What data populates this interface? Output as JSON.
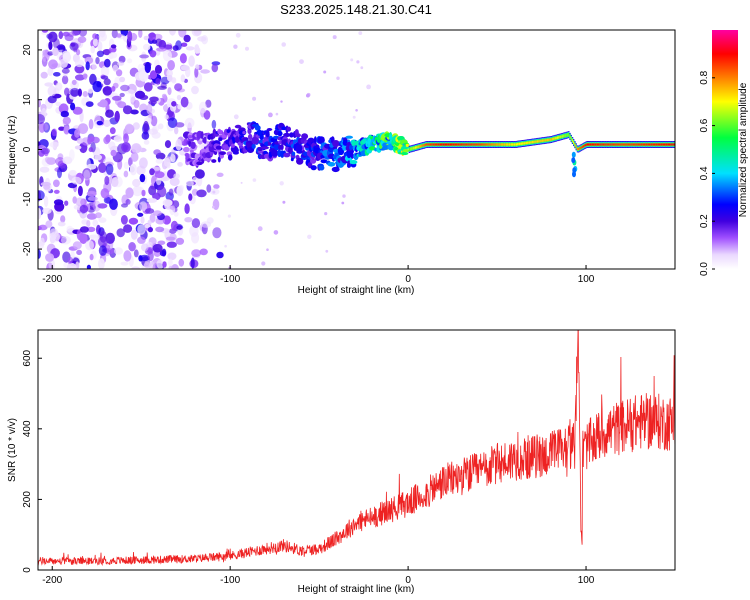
{
  "title": "S233.2025.148.21.30.C41",
  "chart_data": [
    {
      "type": "heatmap",
      "xlabel": "Height of straight line (km)",
      "ylabel": "Frequency (Hz)",
      "xlim": [
        -208,
        150
      ],
      "ylim": [
        -24,
        24
      ],
      "xticks": [
        -200,
        -100,
        0,
        100
      ],
      "yticks": [
        -20,
        -10,
        0,
        10,
        20
      ],
      "colorbar": {
        "label": "Normalized spectral amplitude",
        "range": [
          0.0,
          1.0
        ],
        "ticks": [
          0.0,
          0.2,
          0.4,
          0.6,
          0.8
        ],
        "tick_labels": [
          "0.0",
          "0.2",
          "0.4",
          "0.6",
          "0.8"
        ],
        "colors": [
          "#ffffff",
          "#ead8ff",
          "#a050ff",
          "#4000e0",
          "#0000ff",
          "#00e0ff",
          "#00ff40",
          "#ffff00",
          "#ff8000",
          "#ff0000",
          "#ff00a0"
        ]
      },
      "ridge": {
        "x": [
          -120,
          -100,
          -90,
          -80,
          -70,
          -60,
          -50,
          -40,
          -30,
          -20,
          -10,
          0,
          10,
          20,
          40,
          60,
          80,
          90,
          95,
          100,
          120,
          150
        ],
        "freq": [
          0,
          1,
          3,
          1,
          2,
          0,
          -1,
          -1,
          0,
          1,
          2,
          0,
          1,
          1,
          1,
          1,
          2,
          3,
          0,
          1,
          1,
          1
        ],
        "amplitude": [
          0.15,
          0.2,
          0.25,
          0.25,
          0.25,
          0.25,
          0.25,
          0.3,
          0.35,
          0.45,
          0.5,
          0.6,
          0.85,
          0.9,
          0.85,
          0.7,
          0.75,
          0.6,
          0.8,
          0.9,
          0.85,
          0.9
        ]
      },
      "noise_region_x": [
        -208,
        -110
      ]
    },
    {
      "type": "line",
      "xlabel": "Height of straight line (km)",
      "ylabel": "SNR (10 * v/v)",
      "xlim": [
        -208,
        150
      ],
      "ylim": [
        0,
        680
      ],
      "xticks": [
        -200,
        -100,
        0,
        100
      ],
      "yticks": [
        0,
        200,
        400,
        600
      ],
      "color": "#ee2222",
      "x": [
        -208,
        -180,
        -150,
        -120,
        -100,
        -80,
        -70,
        -60,
        -50,
        -40,
        -30,
        -20,
        -10,
        0,
        10,
        20,
        30,
        40,
        50,
        60,
        70,
        80,
        90,
        95,
        97,
        100,
        110,
        120,
        130,
        140,
        150
      ],
      "y": [
        25,
        25,
        28,
        32,
        40,
        60,
        70,
        55,
        60,
        90,
        130,
        150,
        170,
        190,
        215,
        250,
        265,
        280,
        300,
        315,
        320,
        330,
        350,
        360,
        330,
        350,
        390,
        405,
        420,
        420,
        415
      ],
      "spike": {
        "x": [
          94,
          95,
          96,
          97,
          98
        ],
        "y": [
          380,
          560,
          680,
          140,
          60
        ]
      }
    }
  ]
}
